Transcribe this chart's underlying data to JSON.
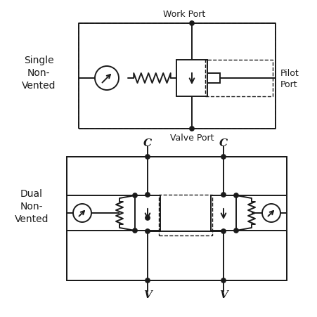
{
  "bg_color": "#ffffff",
  "line_color": "#1a1a1a",
  "text_color": "#1a1a1a",
  "label_single": "Single\nNon-\nVented",
  "label_dual": "Dual\nNon-\nVented",
  "label_work_port": "Work Port",
  "label_valve_port": "Valve Port",
  "label_pilot_port": "Pilot\nPort",
  "label_C1": "C",
  "label_C2": "C",
  "label_V1": "V",
  "label_V2": "V",
  "figsize": [
    4.52,
    4.52
  ],
  "dpi": 100
}
